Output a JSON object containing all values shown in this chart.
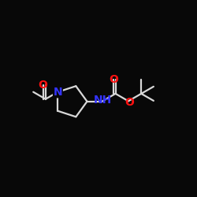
{
  "background_color": "#080808",
  "bond_color": "#d8d8d8",
  "nitrogen_color": "#3333ff",
  "oxygen_color": "#ff1111",
  "bond_width": 1.6,
  "font_size_N": 10,
  "font_size_O": 10,
  "font_size_NH": 10,
  "figsize": [
    2.5,
    2.5
  ],
  "dpi": 100,
  "xlim": [
    0.0,
    1.0
  ],
  "ylim": [
    0.25,
    0.85
  ]
}
